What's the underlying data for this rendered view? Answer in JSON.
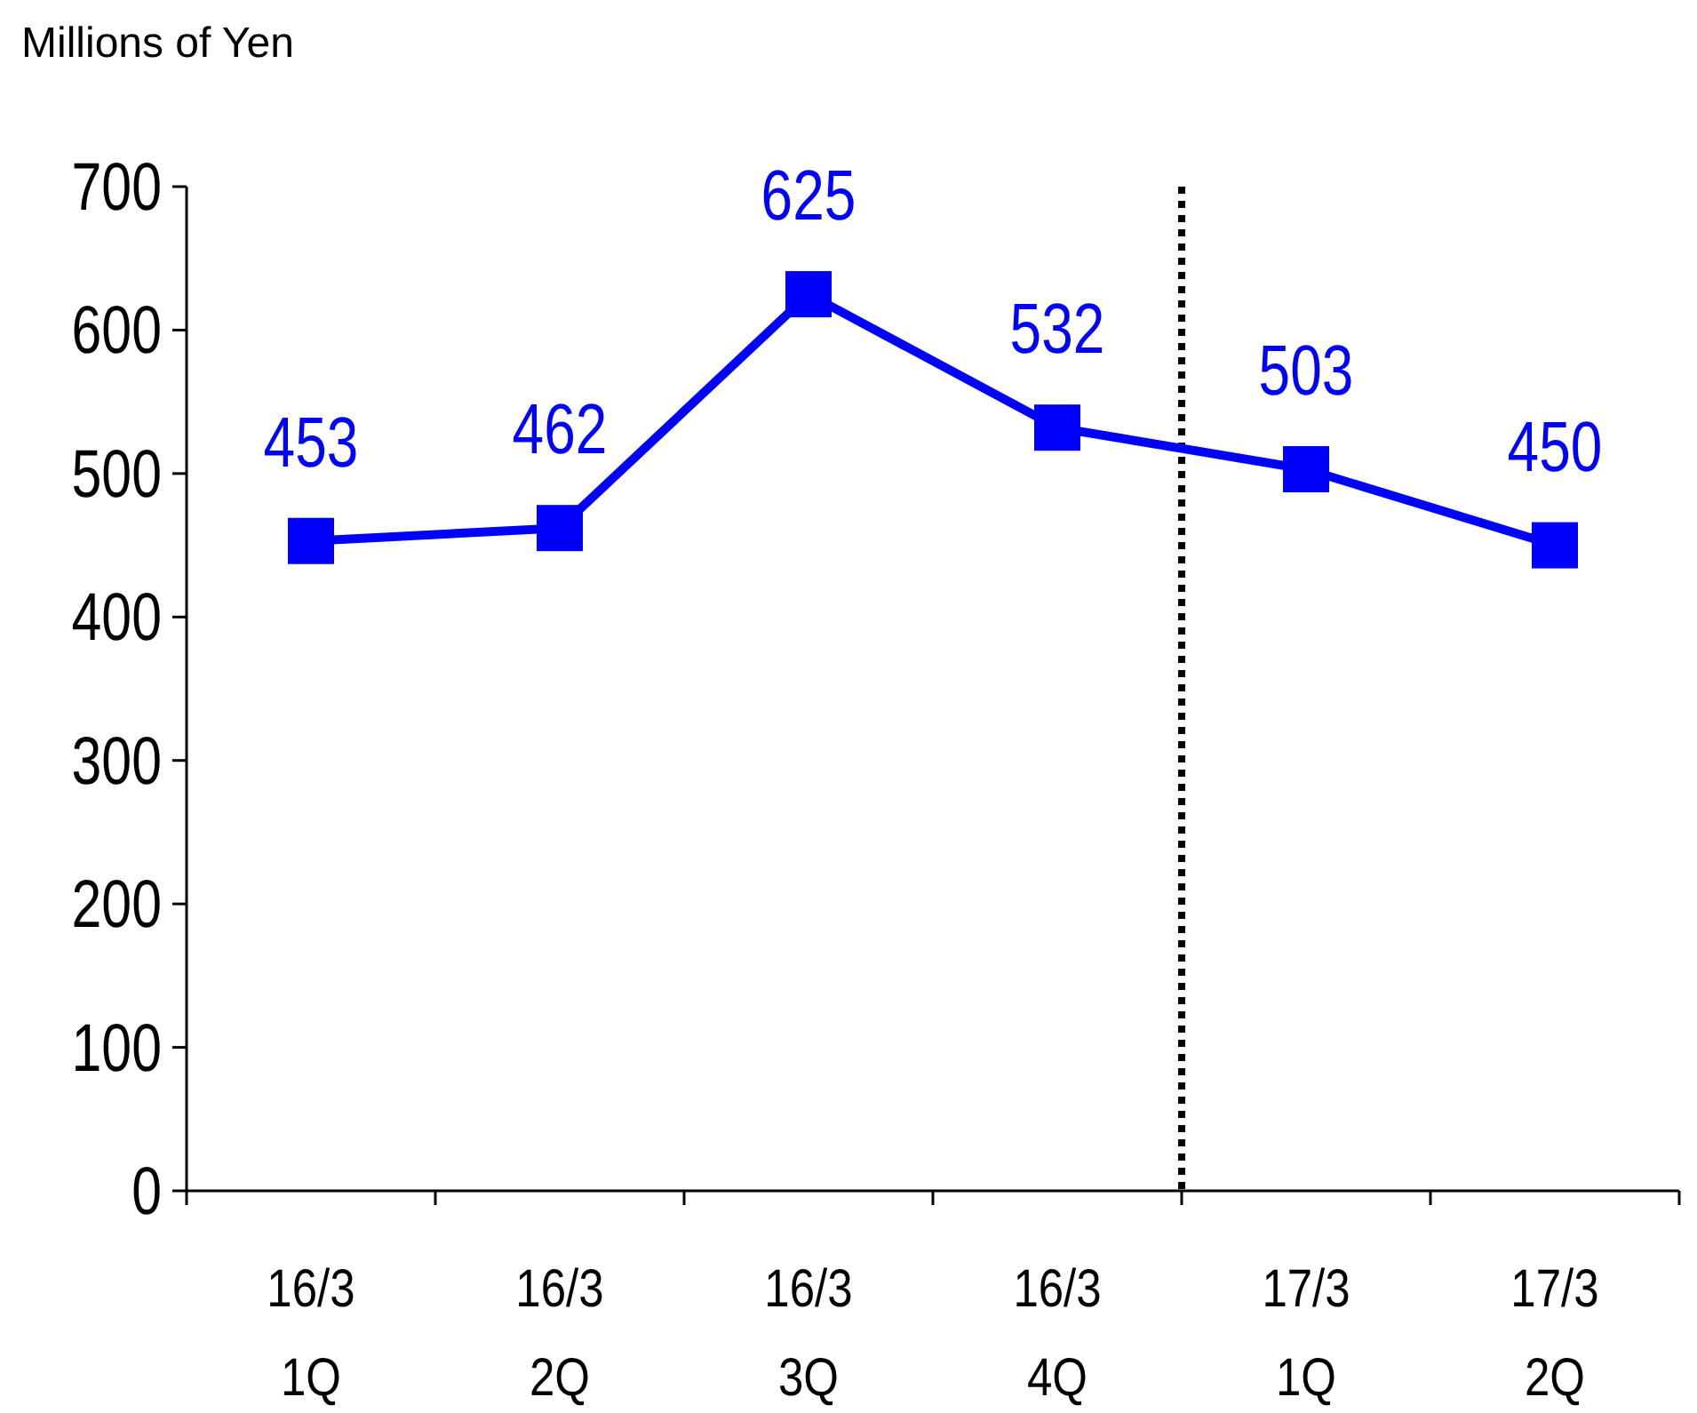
{
  "chart_data": {
    "type": "line",
    "ylabel": "Millions of Yen",
    "categories": [
      "16/3\n1Q",
      "16/3\n2Q",
      "16/3\n3Q",
      "16/3\n4Q",
      "17/3\n1Q",
      "17/3\n2Q"
    ],
    "series": [
      {
        "color": "#0000ff",
        "values": [
          453,
          462,
          625,
          532,
          503,
          450
        ]
      }
    ],
    "ylim": [
      0,
      700
    ],
    "yticks": [
      0,
      100,
      200,
      300,
      400,
      500,
      600,
      700
    ],
    "data_labels": true,
    "marker": "square",
    "line_style": "solid"
  }
}
